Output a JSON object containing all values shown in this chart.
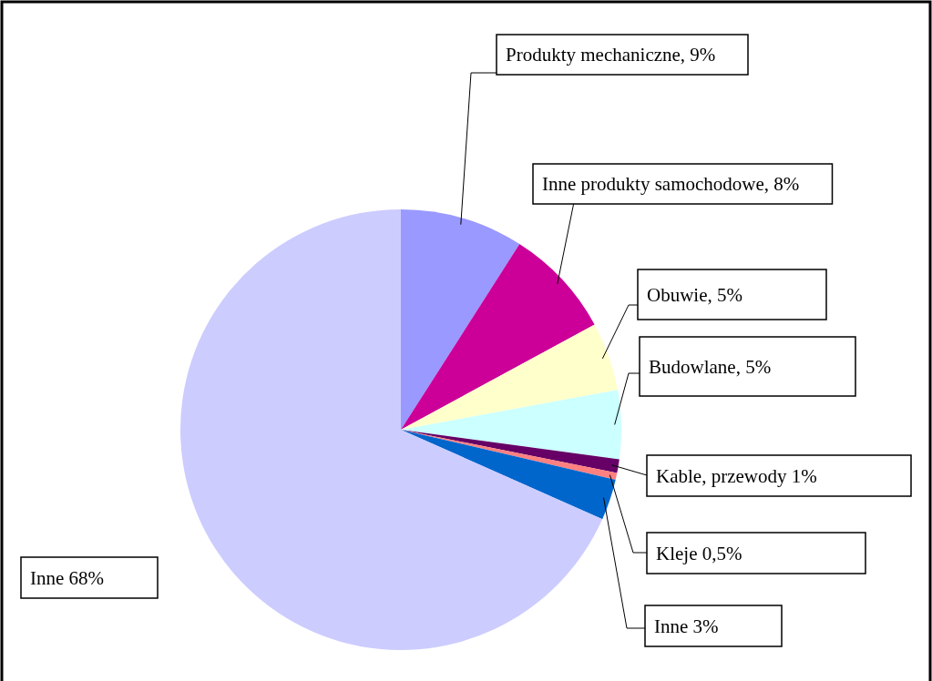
{
  "chart_data": {
    "type": "pie",
    "categories": [
      "Produkty mechaniczne, 9%",
      "Inne produkty samochodowe, 8%",
      "Obuwie, 5%",
      "Budowlane, 5%",
      "Kable, przewody 1%",
      "Kleje 0,5%",
      "Inne 3%",
      "Inne 68%"
    ],
    "values": [
      9,
      8,
      5,
      5,
      1,
      0.5,
      3,
      68
    ],
    "colors": [
      "#9999ff",
      "#cc0099",
      "#ffffcc",
      "#ccffff",
      "#660066",
      "#ff8080",
      "#0066cc",
      "#ccccff"
    ]
  }
}
